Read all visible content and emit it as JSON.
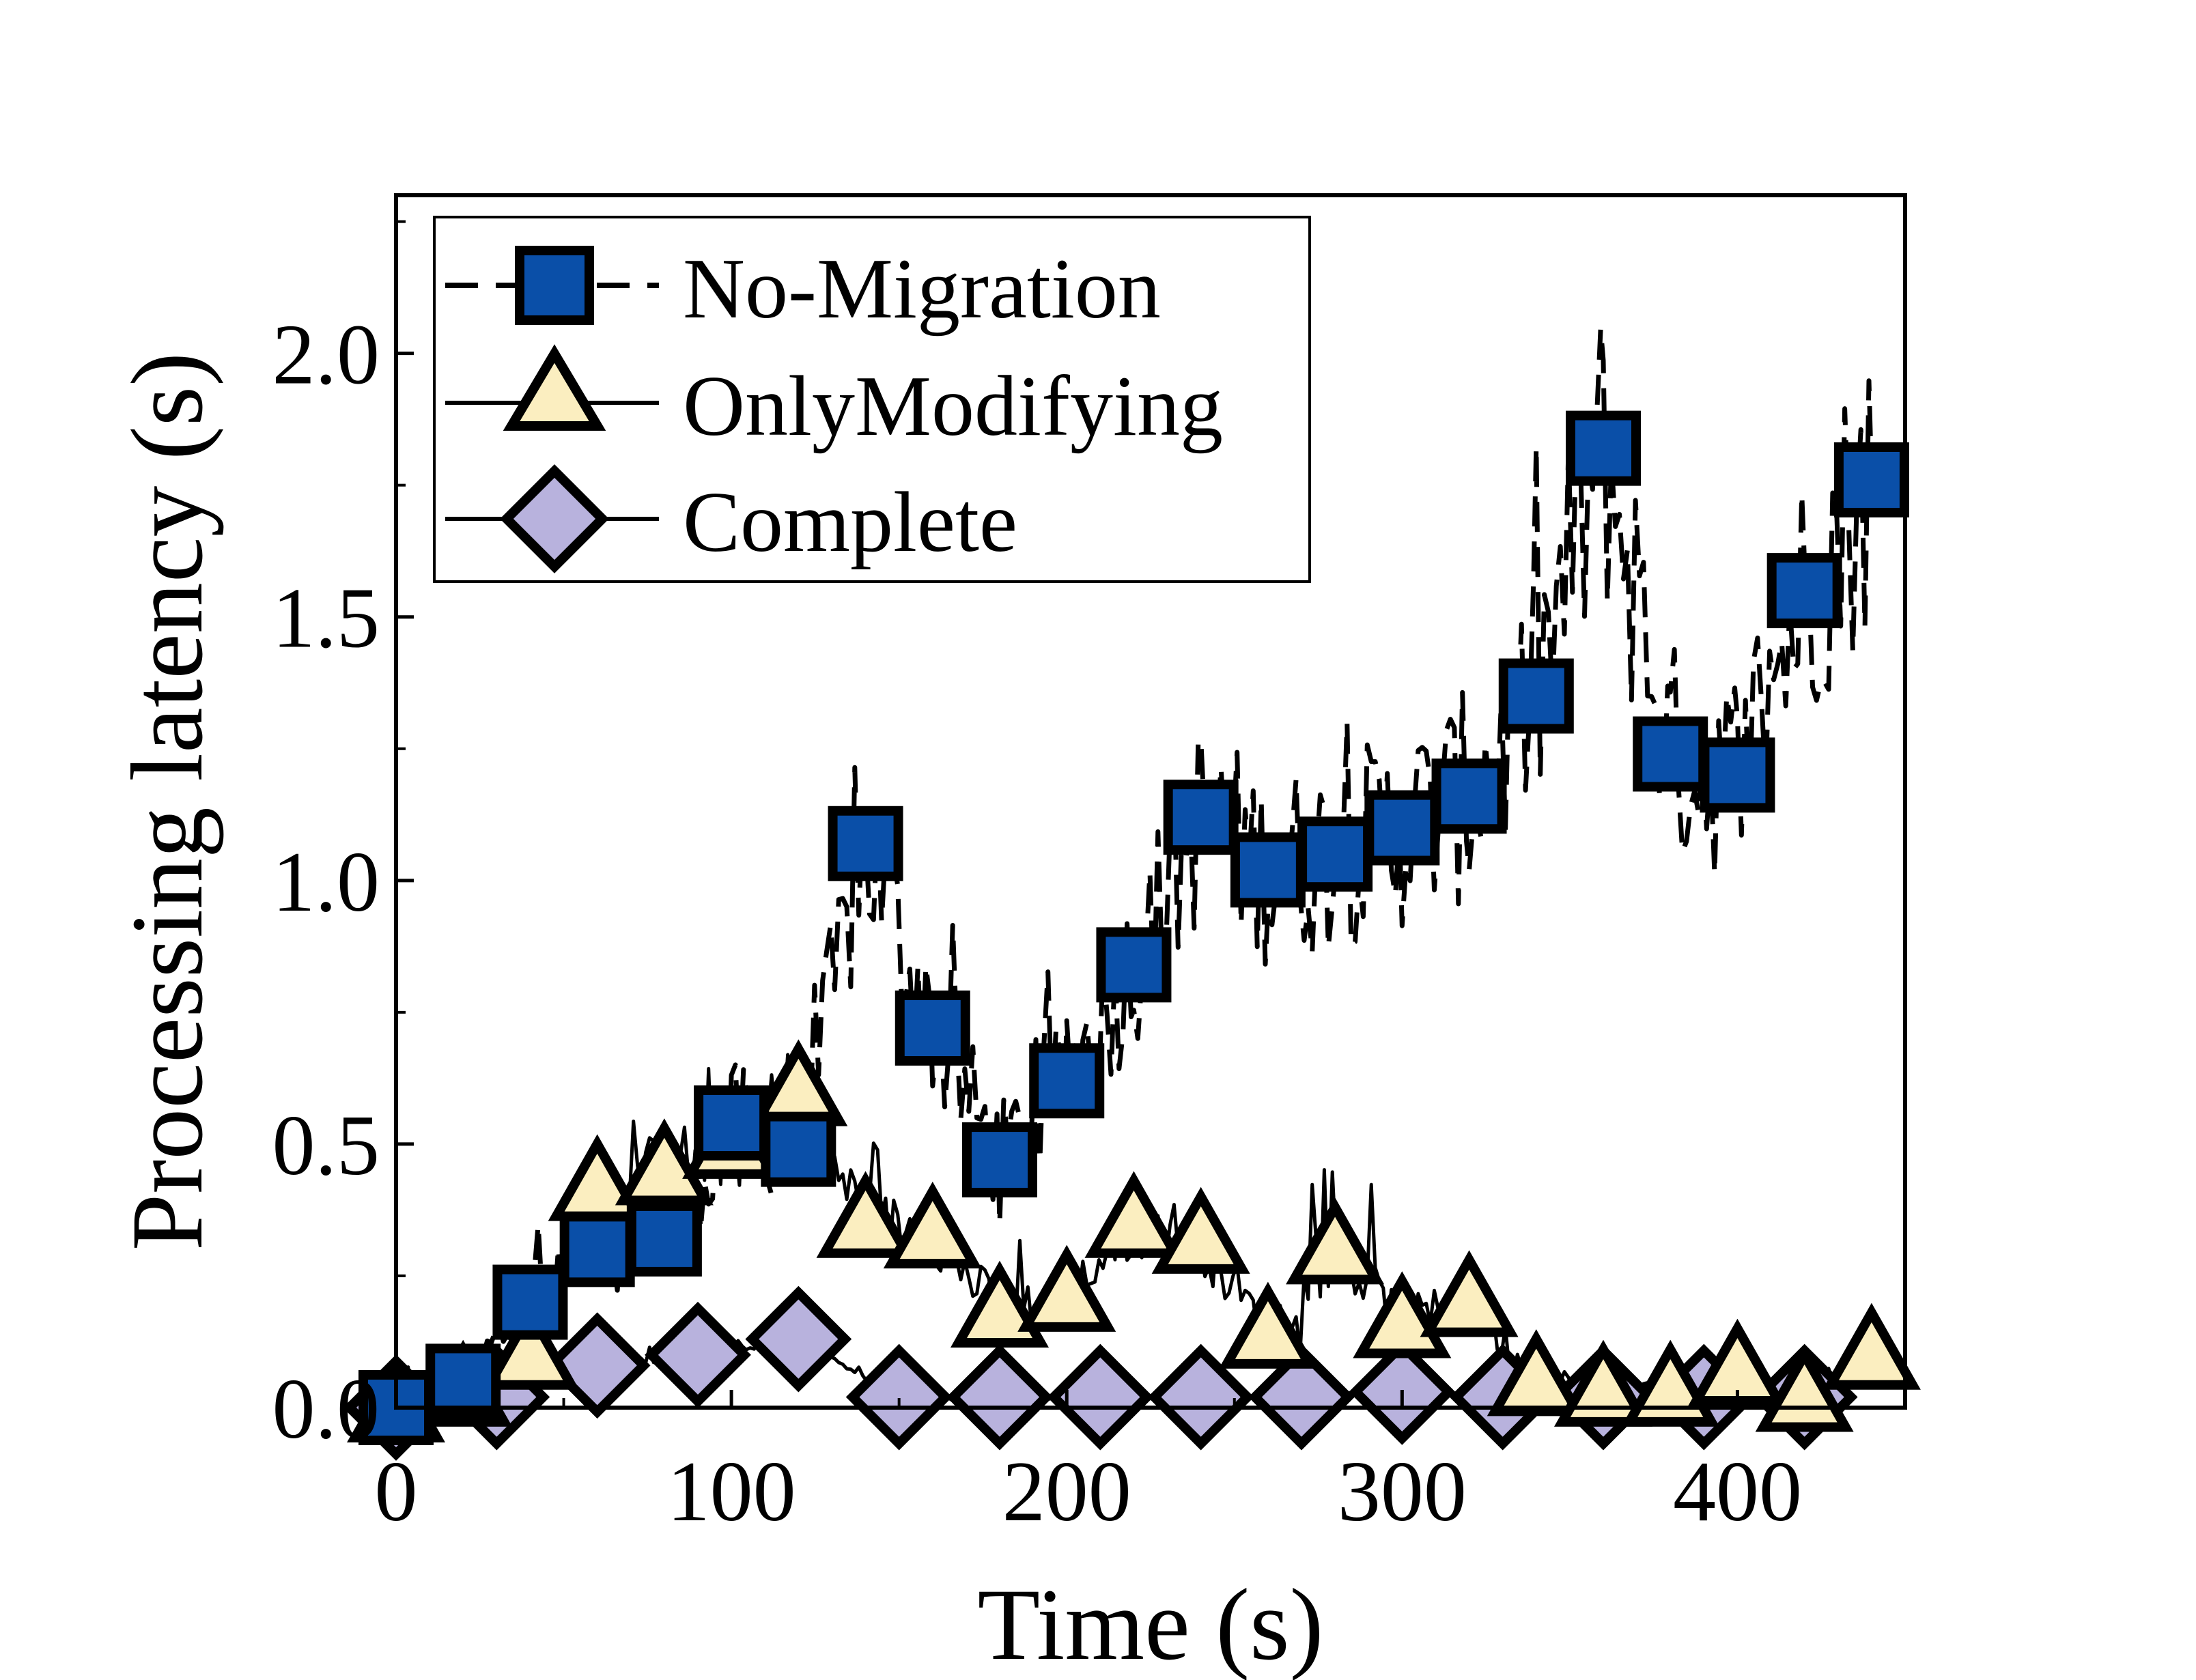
{
  "chart_data": {
    "type": "line",
    "title": "",
    "xlabel": "Time (s)",
    "ylabel": "Processing latency (s)",
    "xlim": [
      0,
      450
    ],
    "ylim": [
      0,
      2.3
    ],
    "x_ticks": [
      0,
      100,
      200,
      300,
      400
    ],
    "y_ticks": [
      0.0,
      0.5,
      1.0,
      1.5,
      2.0
    ],
    "x_tick_labels": [
      "0",
      "100",
      "200",
      "300",
      "400"
    ],
    "y_tick_labels": [
      "0.0",
      "0.5",
      "1.0",
      "1.5",
      "2.0"
    ],
    "legend_position": "top-left",
    "grid": false,
    "series": [
      {
        "name": "No-Migration",
        "line_style": "dashed",
        "marker": "square",
        "marker_color": "#0a4fa8",
        "x": [
          0,
          20,
          40,
          60,
          80,
          100,
          120,
          140,
          160,
          180,
          200,
          220,
          240,
          260,
          280,
          300,
          320,
          340,
          360,
          380,
          400,
          420,
          440
        ],
        "y": [
          0.0,
          0.05,
          0.2,
          0.3,
          0.32,
          0.54,
          0.49,
          1.07,
          0.72,
          0.47,
          0.62,
          0.84,
          1.12,
          1.02,
          1.05,
          1.1,
          1.16,
          1.35,
          1.82,
          1.24,
          1.2,
          1.55,
          1.76
        ]
      },
      {
        "name": "OnlyModifying",
        "line_style": "solid",
        "marker": "triangle",
        "marker_color": "#fbeec0",
        "x": [
          0,
          20,
          40,
          60,
          80,
          100,
          120,
          140,
          160,
          180,
          200,
          220,
          240,
          260,
          280,
          300,
          320,
          340,
          360,
          380,
          400,
          420,
          440
        ],
        "y": [
          0.0,
          0.03,
          0.1,
          0.42,
          0.45,
          0.5,
          0.6,
          0.35,
          0.33,
          0.18,
          0.21,
          0.35,
          0.32,
          0.14,
          0.3,
          0.16,
          0.2,
          0.05,
          0.03,
          0.03,
          0.07,
          0.02,
          0.1
        ]
      },
      {
        "name": "Complete",
        "line_style": "solid",
        "marker": "diamond",
        "marker_color": "#b8b2dd",
        "x": [
          0,
          30,
          60,
          90,
          120,
          150,
          180,
          210,
          240,
          270,
          300,
          330,
          360,
          390,
          420
        ],
        "y": [
          0.0,
          0.02,
          0.08,
          0.1,
          0.13,
          0.02,
          0.02,
          0.02,
          0.02,
          0.02,
          0.03,
          0.02,
          0.02,
          0.02,
          0.02
        ]
      }
    ]
  }
}
